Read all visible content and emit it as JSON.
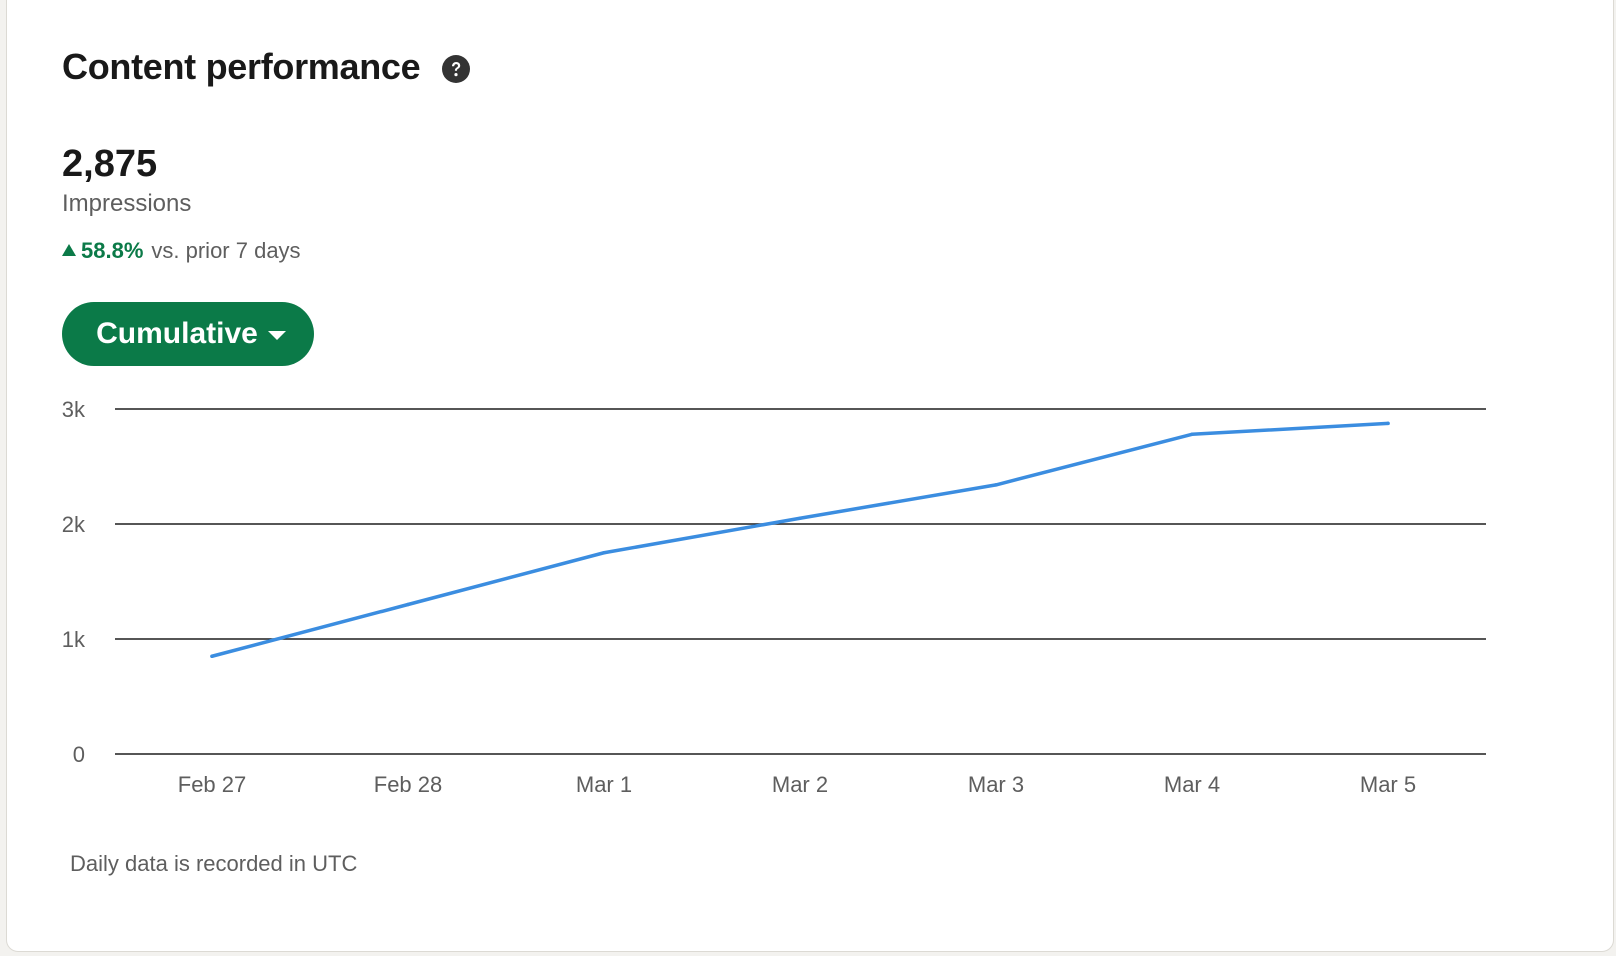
{
  "card": {
    "title": "Content performance",
    "help_icon": "question-circle-icon"
  },
  "metric": {
    "value": "2,875",
    "label": "Impressions",
    "change_value": "58.8%",
    "change_text": "vs. prior 7 days",
    "change_direction": "up",
    "change_color": "#0b7a48"
  },
  "dropdown": {
    "label": "Cumulative",
    "icon": "caret-down-icon",
    "color": "#0b7a48"
  },
  "chart_data": {
    "type": "line",
    "categories": [
      "Feb 27",
      "Feb 28",
      "Mar 1",
      "Mar 2",
      "Mar 3",
      "Mar 4",
      "Mar 5"
    ],
    "series": [
      {
        "values": [
          850,
          1300,
          1750,
          2050,
          2340,
          2780,
          2875
        ],
        "color": "#3b8de0"
      }
    ],
    "yticks": [
      0,
      1000,
      2000,
      3000
    ],
    "ytick_labels": [
      "0",
      "1k",
      "2k",
      "3k"
    ],
    "ylim": [
      0,
      3000
    ],
    "grid": true
  },
  "footnote": "Daily data is recorded in UTC"
}
